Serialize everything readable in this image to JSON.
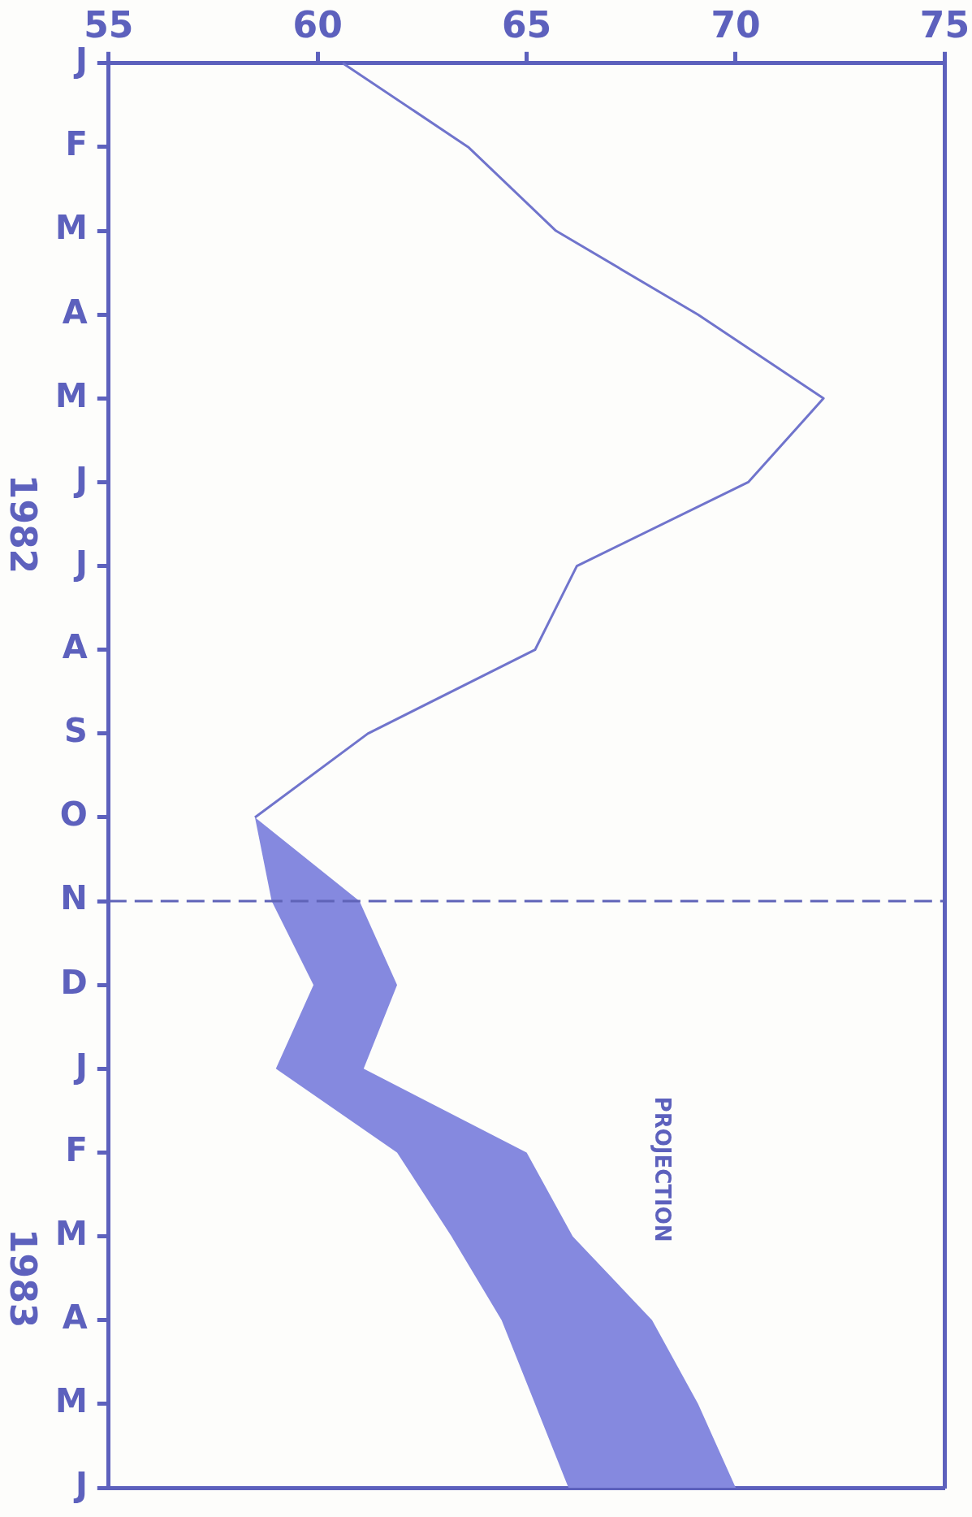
{
  "chart_data": {
    "type": "line",
    "categories": [
      "J",
      "F",
      "M",
      "A",
      "M",
      "J",
      "J",
      "A",
      "S",
      "O",
      "N",
      "D",
      "J",
      "F",
      "M",
      "A",
      "M",
      "J"
    ],
    "series": [
      {
        "type": "line",
        "color": "#7074cc",
        "values": [
          60.6,
          63.6,
          65.7,
          69.1,
          72.1,
          70.3,
          66.2,
          65.2,
          61.2,
          58.5,
          null,
          null,
          null,
          null,
          null,
          null,
          null,
          null
        ]
      },
      {
        "type": "area",
        "color": "#8589df",
        "values": [
          null,
          null,
          null,
          null,
          null,
          null,
          null,
          null,
          null,
          null,
          null,
          null,
          null,
          null,
          null,
          null,
          null,
          null
        ],
        "lower": [
          null,
          null,
          null,
          null,
          null,
          null,
          null,
          null,
          null,
          58.5,
          58.9,
          59.9,
          59.0,
          61.9,
          63.2,
          64.4,
          65.2,
          66.0
        ],
        "upper": [
          null,
          null,
          null,
          null,
          null,
          null,
          null,
          null,
          null,
          58.5,
          61.0,
          61.9,
          61.1,
          65.0,
          66.1,
          68.0,
          69.1,
          70.0
        ]
      }
    ],
    "orientation": "horizontal",
    "xlim": [
      55,
      75
    ],
    "xticks": [
      55,
      60,
      65,
      70,
      75
    ],
    "grid": false,
    "legend": false,
    "marker": "none",
    "ref_lines": [
      {
        "axis": "y",
        "value": "N",
        "line_style": "dashed",
        "color": "#5f63b8"
      }
    ],
    "annotations": [
      "1982",
      "1983",
      "PROJECTION"
    ]
  }
}
